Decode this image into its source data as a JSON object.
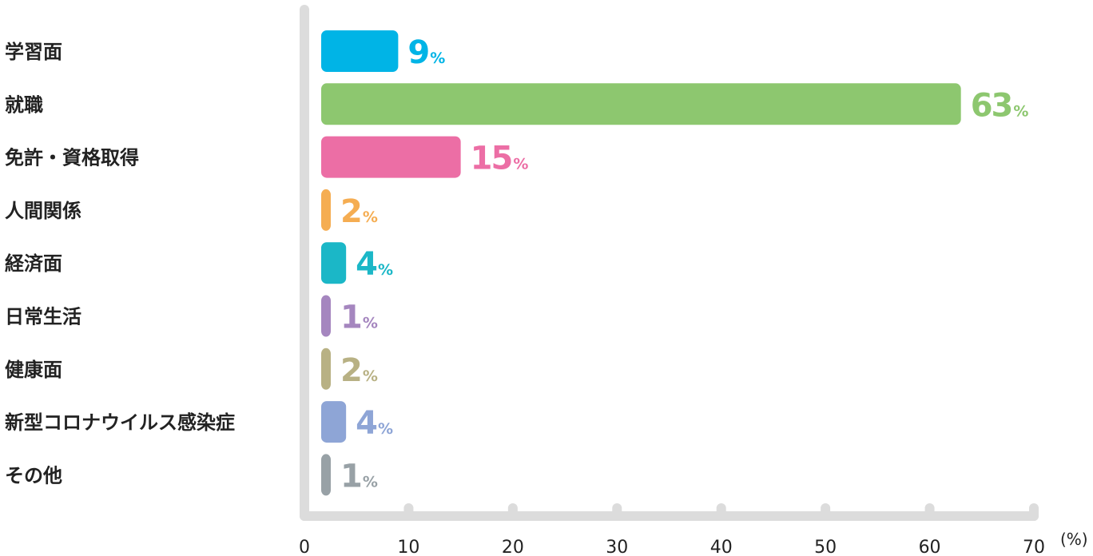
{
  "chart_data": {
    "type": "bar",
    "orientation": "horizontal",
    "categories": [
      "学習面",
      "就職",
      "免許・資格取得",
      "人間関係",
      "経済面",
      "日常生活",
      "健康面",
      "新型コロナウイルス感染症",
      "その他"
    ],
    "values": [
      9,
      63,
      15,
      2,
      4,
      1,
      2,
      4,
      1
    ],
    "value_suffix": "%",
    "colors": [
      "#00b4e6",
      "#8dc76f",
      "#ec6ea5",
      "#f5ad52",
      "#1bb7c7",
      "#a586bf",
      "#b8b184",
      "#8ea5d6",
      "#98a1a6"
    ],
    "x_ticks": [
      0,
      10,
      20,
      30,
      40,
      50,
      60,
      70
    ],
    "xlim": [
      0,
      70
    ],
    "x_unit": "(%)",
    "axis_color": "#dcdcdc",
    "grid": false
  }
}
